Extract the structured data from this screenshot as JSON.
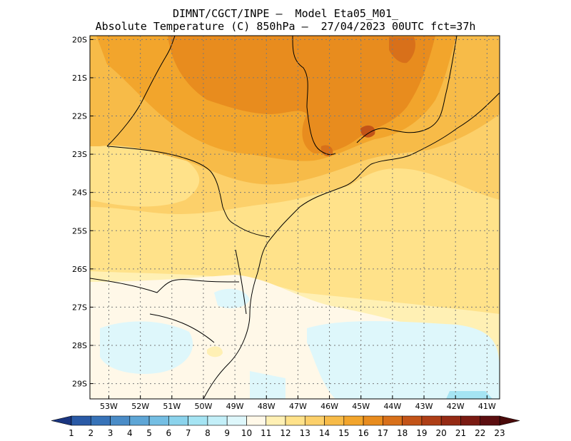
{
  "header": {
    "line1": "DIMNT/CGCT/INPE –  Model Eta05_M01_",
    "line2": "Absolute Temperature (C) 850hPa –  27/04/2023 00UTC fct=37h"
  },
  "map": {
    "lat_labels": [
      "20S",
      "21S",
      "22S",
      "23S",
      "24S",
      "25S",
      "26S",
      "27S",
      "28S",
      "29S"
    ],
    "lon_labels": [
      "53W",
      "52W",
      "51W",
      "50W",
      "49W",
      "48W",
      "47W",
      "46W",
      "45W",
      "44W",
      "43W",
      "42W",
      "41W"
    ],
    "lat_range": [
      -29.4,
      -19.9
    ],
    "lon_range": [
      -53.6,
      -40.6
    ],
    "gridlines": true
  },
  "colorbar": {
    "labels": [
      "1",
      "2",
      "3",
      "4",
      "5",
      "6",
      "7",
      "8",
      "9",
      "10",
      "11",
      "12",
      "13",
      "14",
      "15",
      "16",
      "17",
      "18",
      "19",
      "20",
      "21",
      "22",
      "23"
    ],
    "colors": [
      "#1f3f8f",
      "#2a5aa6",
      "#3773b8",
      "#4a8cc7",
      "#5ea6d6",
      "#74bee3",
      "#8bd3ec",
      "#a5e4f3",
      "#c3eff8",
      "#def7fb",
      "#fff8e8",
      "#fff0b4",
      "#ffe28a",
      "#fcd06a",
      "#f7bb48",
      "#f2a52c",
      "#e88c1e",
      "#d8701a",
      "#c35418",
      "#ae3e16",
      "#952a14",
      "#7a1a12",
      "#5c0e10"
    ],
    "under_color": "#1a3580",
    "over_color": "#4a0a0a"
  }
}
